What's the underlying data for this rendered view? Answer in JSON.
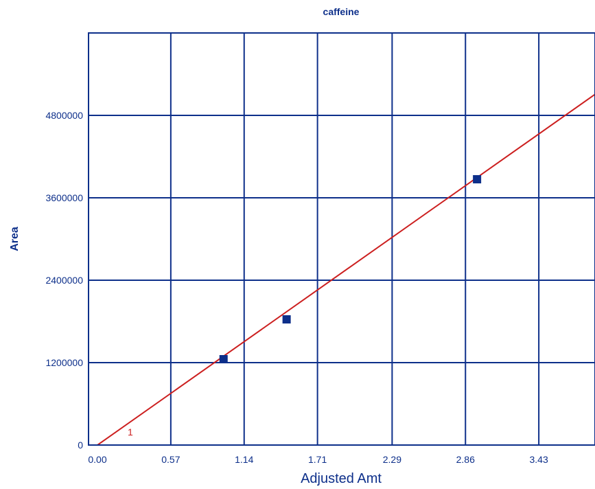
{
  "chart_data": {
    "type": "scatter",
    "title": "caffeine",
    "xlabel": "Adjusted Amt",
    "ylabel": "Area",
    "x_ticks": [
      "0.00",
      "0.57",
      "1.14",
      "1.71",
      "2.29",
      "2.86",
      "3.43"
    ],
    "y_ticks": [
      "0",
      "1200000",
      "2400000",
      "3600000",
      "4800000"
    ],
    "xlim": [
      0,
      3.9
    ],
    "ylim": [
      0,
      6000000
    ],
    "grid": true,
    "series": [
      {
        "type": "scatter",
        "marker": "square",
        "color": "#0d2f8a",
        "x": [
          0.98,
          1.47,
          2.95
        ],
        "y": [
          1250000,
          1830000,
          3870000
        ]
      },
      {
        "type": "line",
        "color": "#cc1f1f",
        "label": "1",
        "x": [
          0,
          3.9
        ],
        "y": [
          0,
          5150000
        ]
      }
    ]
  }
}
